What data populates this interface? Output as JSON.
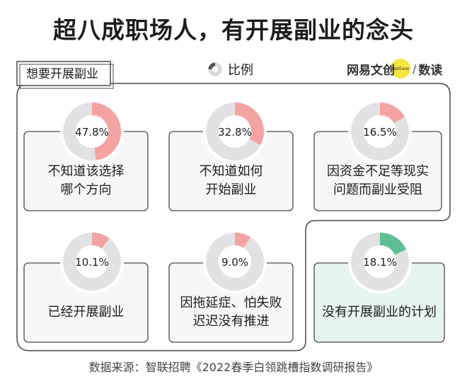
{
  "title": "超八成职场人，有开展副业的念头",
  "tab_label": "想要开展副业",
  "legend_label": "比例",
  "brand": {
    "left": "网易文创",
    "dot": "NetEase",
    "slash": "/",
    "right": "数读"
  },
  "source": "数据来源：智联招聘《2022春季白领跳槽指数调研报告》",
  "colors": {
    "accent": "#f4a3a3",
    "plan_accent": "#5fbf92",
    "ring_track": "#e2e2e2",
    "card_bg": "#f7f7f7",
    "plan_card_bg": "#e6f5ee",
    "border": "#4a4a4a"
  },
  "chart_data": {
    "type": "pie",
    "title": "超八成职场人，有开展副业的念头",
    "unit": "%",
    "series": [
      {
        "group": "想要开展副业",
        "label": "不知道该选择哪个方向",
        "lines": [
          "不知道该选择",
          "哪个方向"
        ],
        "value": 47.8,
        "display": "47.8%"
      },
      {
        "group": "想要开展副业",
        "label": "不知道如何开始副业",
        "lines": [
          "不知道如何",
          "开始副业"
        ],
        "value": 32.8,
        "display": "32.8%"
      },
      {
        "group": "想要开展副业",
        "label": "因资金不足等现实问题而副业受阻",
        "lines": [
          "因资金不足等现实",
          "问题而副业受阻"
        ],
        "value": 16.5,
        "display": "16.5%"
      },
      {
        "group": "想要开展副业",
        "label": "已经开展副业",
        "lines": [
          "已经开展副业"
        ],
        "value": 10.1,
        "display": "10.1%"
      },
      {
        "group": "想要开展副业",
        "label": "因拖延症、怕失败迟迟没有推进",
        "lines": [
          "因拖延症、怕失败",
          "迟迟没有推进"
        ],
        "value": 9.0,
        "display": "9.0%"
      },
      {
        "group": "",
        "label": "没有开展副业的计划",
        "lines": [
          "没有开展副业的计划"
        ],
        "value": 18.1,
        "display": "18.1%"
      }
    ]
  }
}
